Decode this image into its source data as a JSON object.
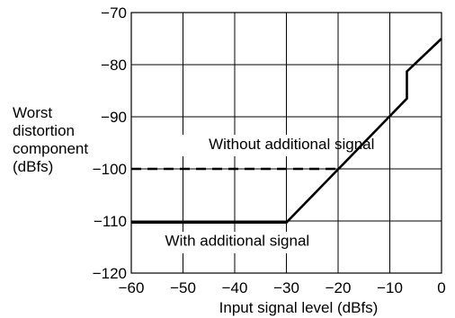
{
  "chart_data": {
    "type": "line",
    "title": "",
    "xlabel": "Input signal level (dBfs)",
    "ylabel_lines": [
      "Worst",
      "distortion",
      "component",
      "(dBfs)"
    ],
    "xlim": [
      -60,
      0
    ],
    "ylim": [
      -120,
      -70
    ],
    "xticks": [
      -60,
      -50,
      -40,
      -30,
      -20,
      -10,
      0
    ],
    "yticks": [
      -70,
      -80,
      -90,
      -100,
      -110,
      -120
    ],
    "xtick_labels": [
      "−60",
      "−50",
      "−40",
      "−30",
      "−20",
      "−10",
      "0"
    ],
    "ytick_labels": [
      "−70",
      "−80",
      "−90",
      "−100",
      "−110",
      "−120"
    ],
    "grid": true,
    "series": [
      {
        "style": "solid",
        "x": [
          -60,
          -30,
          -6.7,
          -6.7,
          0
        ],
        "y": [
          -110.3,
          -110.3,
          -86.5,
          -81.3,
          -75
        ]
      },
      {
        "style": "dashed",
        "x": [
          -60,
          -20
        ],
        "y": [
          -100,
          -100
        ]
      }
    ],
    "annotations": [
      {
        "text": "Without additional signal",
        "x": -29,
        "y": -96.2
      },
      {
        "text": "With additional signal",
        "x": -39.5,
        "y": -114.7
      }
    ]
  }
}
